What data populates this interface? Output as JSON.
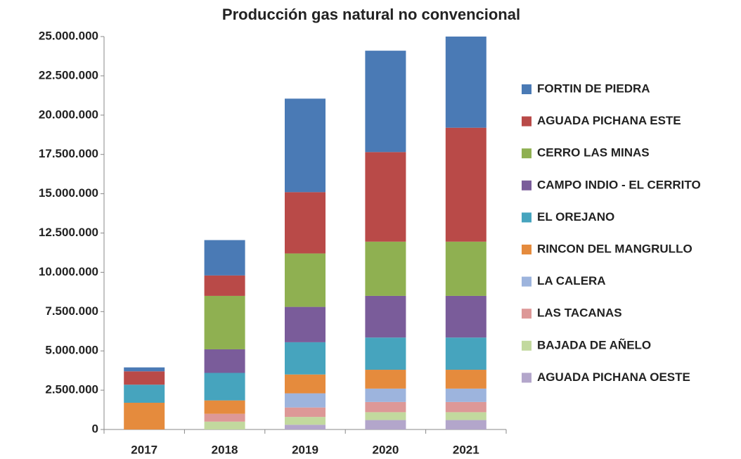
{
  "chart_data": {
    "type": "stacked_bar",
    "title": "Producción  gas natural  no convencional",
    "categories": [
      "2017",
      "2018",
      "2019",
      "2020",
      "2021"
    ],
    "series": [
      {
        "name": "FORTIN DE PIEDRA",
        "color": "#4a7ab5",
        "values": [
          250000,
          2250000,
          5950000,
          6450000,
          5800000
        ]
      },
      {
        "name": "AGUADA PICHANA ESTE",
        "color": "#b94a48",
        "values": [
          850000,
          1300000,
          3900000,
          5700000,
          7250000
        ]
      },
      {
        "name": "CERRO LAS MINAS",
        "color": "#8fb051",
        "values": [
          0,
          3400000,
          3400000,
          3450000,
          3450000
        ]
      },
      {
        "name": "CAMPO INDIO - EL CERRITO",
        "color": "#7a5c9a",
        "values": [
          0,
          1500000,
          2250000,
          2650000,
          2650000
        ]
      },
      {
        "name": "EL OREJANO",
        "color": "#46a4be",
        "values": [
          1150000,
          1750000,
          2050000,
          2050000,
          2050000
        ]
      },
      {
        "name": "RINCON DEL MANGRULLO",
        "color": "#e58b3d",
        "values": [
          1700000,
          850000,
          1200000,
          1200000,
          1200000
        ]
      },
      {
        "name": "LA CALERA",
        "color": "#9db4dd",
        "values": [
          0,
          0,
          900000,
          850000,
          850000
        ]
      },
      {
        "name": "LAS TACANAS",
        "color": "#dd9897",
        "values": [
          0,
          500000,
          600000,
          650000,
          650000
        ]
      },
      {
        "name": "BAJADA DE AÑELO",
        "color": "#c2d99e",
        "values": [
          0,
          500000,
          500000,
          500000,
          500000
        ]
      },
      {
        "name": "AGUADA PICHANA OESTE",
        "color": "#b3a6cb",
        "values": [
          0,
          0,
          300000,
          600000,
          600000
        ]
      }
    ],
    "ylim": [
      0,
      25000000
    ],
    "yticks": [
      0,
      {
        "value": 2500000,
        "label": "2.500.000"
      },
      {
        "value": 5000000,
        "label": "5.000.000"
      },
      {
        "value": 7500000,
        "label": "7.500.000"
      },
      {
        "value": 10000000,
        "label": "10.000.000"
      },
      {
        "value": 12500000,
        "label": "12.500.000"
      },
      {
        "value": 15000000,
        "label": "15.000.000"
      },
      {
        "value": 17500000,
        "label": "17.500.000"
      },
      {
        "value": 20000000,
        "label": "20.000.000"
      },
      {
        "value": 22500000,
        "label": "22.500.000"
      },
      {
        "value": 25000000,
        "label": "25.000.000"
      }
    ],
    "legend": "right"
  }
}
